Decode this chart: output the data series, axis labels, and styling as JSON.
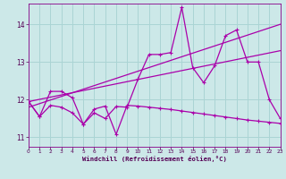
{
  "xlabel": "Windchill (Refroidissement éolien,°C)",
  "background_color": "#cce8e8",
  "grid_color": "#aad4d4",
  "line_color": "#aa00aa",
  "xlim": [
    0,
    23
  ],
  "ylim": [
    10.75,
    14.55
  ],
  "xticks": [
    0,
    1,
    2,
    3,
    4,
    5,
    6,
    7,
    8,
    9,
    10,
    11,
    12,
    13,
    14,
    15,
    16,
    17,
    18,
    19,
    20,
    21,
    22,
    23
  ],
  "yticks": [
    11,
    12,
    13,
    14
  ],
  "serA_x": [
    0,
    1,
    2,
    3,
    4,
    5,
    6,
    7,
    8,
    9,
    10,
    11,
    12,
    13,
    14,
    15,
    16,
    17,
    18,
    19,
    20,
    21,
    22,
    23
  ],
  "serA_y": [
    11.95,
    11.55,
    11.85,
    11.8,
    11.65,
    11.35,
    11.75,
    11.83,
    11.08,
    11.85,
    11.83,
    11.8,
    11.77,
    11.74,
    11.7,
    11.66,
    11.62,
    11.58,
    11.54,
    11.5,
    11.46,
    11.43,
    11.4,
    11.37
  ],
  "serB_x": [
    0,
    1,
    2,
    3,
    4,
    5,
    6,
    7,
    8,
    9,
    10,
    11,
    12,
    13,
    14,
    15,
    16,
    17,
    18,
    19,
    20,
    21,
    22,
    23
  ],
  "serB_y": [
    11.95,
    11.55,
    12.22,
    12.22,
    12.05,
    11.35,
    11.65,
    11.5,
    11.82,
    11.8,
    12.55,
    13.2,
    13.2,
    13.25,
    14.45,
    12.85,
    12.45,
    12.9,
    13.7,
    13.85,
    13.0,
    13.0,
    12.0,
    11.5
  ],
  "trend1_x": [
    0,
    23
  ],
  "trend1_y": [
    11.95,
    13.3
  ],
  "trend2_x": [
    0,
    23
  ],
  "trend2_y": [
    11.8,
    14.0
  ]
}
